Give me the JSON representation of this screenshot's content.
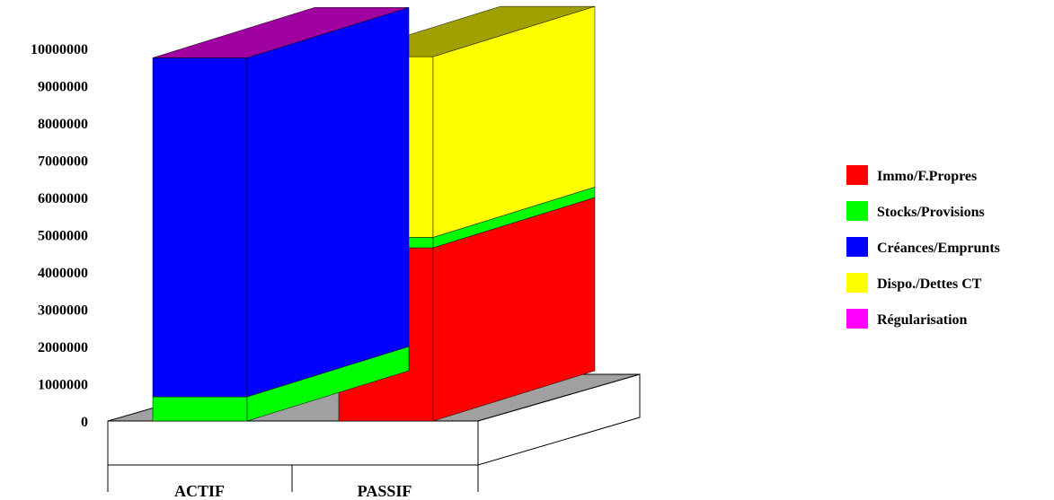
{
  "chart_data": {
    "type": "bar",
    "stacked": true,
    "three_d": true,
    "categories": [
      "ACTIF",
      "PASSIF"
    ],
    "series": [
      {
        "name": "Immo/F.Propres",
        "color": "#ff0000",
        "values": [
          0,
          4650000
        ]
      },
      {
        "name": "Stocks/Provisions",
        "color": "#00ff00",
        "values": [
          650000,
          280000
        ]
      },
      {
        "name": "Créances/Emprunts",
        "color": "#0000ff",
        "values": [
          9100000,
          0
        ]
      },
      {
        "name": "Dispo./Dettes CT",
        "color": "#ffff00",
        "values": [
          0,
          4850000
        ]
      },
      {
        "name": "Régularisation",
        "color": "#ff00ff",
        "values": [
          0,
          0
        ]
      }
    ],
    "y_ticks": [
      "0",
      "1000000",
      "2000000",
      "3000000",
      "4000000",
      "5000000",
      "6000000",
      "7000000",
      "8000000",
      "9000000",
      "10000000"
    ],
    "ylim": [
      0,
      10000000
    ],
    "legend_position": "right",
    "grid": false
  }
}
